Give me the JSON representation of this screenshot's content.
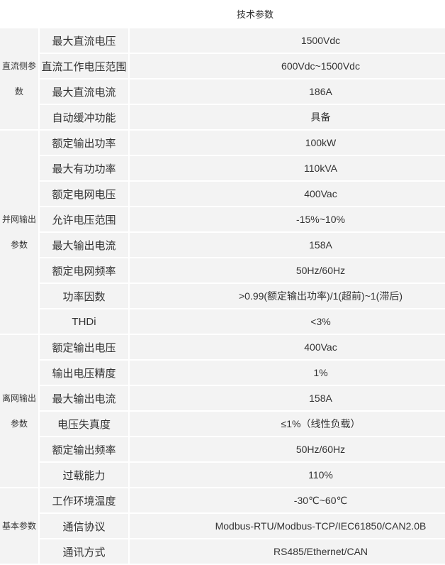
{
  "title": "技术参数",
  "colors": {
    "cell_background": "#f3f3f3",
    "grid_line": "#ffffff",
    "text": "#333333"
  },
  "table": {
    "groups": [
      {
        "name": "直流侧参数",
        "rows": [
          {
            "label": "最大直流电压",
            "value": "1500Vdc"
          },
          {
            "label": "直流工作电压范围",
            "value": "600Vdc~1500Vdc"
          },
          {
            "label": "最大直流电流",
            "value": "186A"
          },
          {
            "label": "自动缓冲功能",
            "value": "具备"
          }
        ]
      },
      {
        "name": "并网输出参数",
        "rows": [
          {
            "label": "额定输出功率",
            "value": "100kW"
          },
          {
            "label": "最大有功功率",
            "value": "110kVA"
          },
          {
            "label": "额定电网电压",
            "value": "400Vac"
          },
          {
            "label": "允许电压范围",
            "value": "-15%~10%"
          },
          {
            "label": "最大输出电流",
            "value": "158A"
          },
          {
            "label": "额定电网频率",
            "value": "50Hz/60Hz"
          },
          {
            "label": "功率因数",
            "value": ">0.99(额定输出功率)/1(超前)~1(滞后)"
          },
          {
            "label": "THDi",
            "value": "<3%"
          }
        ]
      },
      {
        "name": "离网输出参数",
        "rows": [
          {
            "label": "额定输出电压",
            "value": "400Vac"
          },
          {
            "label": "输出电压精度",
            "value": "1%"
          },
          {
            "label": "最大输出电流",
            "value": "158A"
          },
          {
            "label": "电压失真度",
            "value": "≤1%（线性负载）"
          },
          {
            "label": "额定输出频率",
            "value": "50Hz/60Hz"
          },
          {
            "label": "过载能力",
            "value": "110%"
          }
        ]
      },
      {
        "name": "基本参数",
        "rows": [
          {
            "label": "工作环境温度",
            "value": "-30℃~60℃"
          },
          {
            "label": "通信协议",
            "value": "Modbus-RTU/Modbus-TCP/IEC61850/CAN2.0B"
          },
          {
            "label": "通讯方式",
            "value": "RS485/Ethernet/CAN"
          }
        ]
      }
    ]
  }
}
